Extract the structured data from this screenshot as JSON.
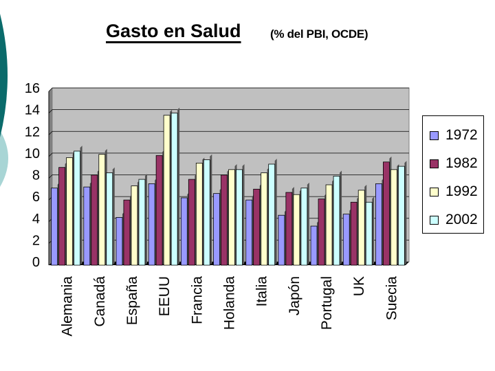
{
  "header": {
    "title": "Gasto en Salud",
    "subtitle": "(% del PBI, OCDE)"
  },
  "colors": {
    "plot_bg": "#c0c0c0",
    "deco_teal": "#0a6b6b",
    "deco_light": "#a8d5d5"
  },
  "chart_data": {
    "type": "bar",
    "title": "Gasto en Salud",
    "subtitle": "(% del PBI, OCDE)",
    "xlabel": "",
    "ylabel": "",
    "ylim": [
      0,
      16
    ],
    "yticks": [
      "0",
      "2",
      "4",
      "6",
      "8",
      "10",
      "12",
      "14",
      "16"
    ],
    "grid": true,
    "legend_position": "right",
    "categories": [
      "Alemania",
      "Canadá",
      "España",
      "EEUU",
      "Francia",
      "Holanda",
      "Italia",
      "Japón",
      "Portugal",
      "UK",
      "Suecia"
    ],
    "series": [
      {
        "name": "1972",
        "color": "#9999ff",
        "values": [
          7.1,
          7.2,
          4.4,
          7.5,
          6.2,
          6.6,
          6.0,
          4.6,
          3.6,
          4.7,
          7.5
        ]
      },
      {
        "name": "1982",
        "color": "#993366",
        "values": [
          9.0,
          8.3,
          6.0,
          10.1,
          7.9,
          8.3,
          7.0,
          6.7,
          6.1,
          5.8,
          9.5
        ]
      },
      {
        "name": "1992",
        "color": "#ffffcc",
        "values": [
          9.9,
          10.2,
          7.3,
          13.8,
          9.4,
          8.8,
          8.5,
          6.5,
          7.4,
          6.9,
          8.8
        ]
      },
      {
        "name": "2002",
        "color": "#ccffff",
        "values": [
          10.5,
          8.5,
          7.9,
          14.0,
          9.7,
          8.8,
          9.3,
          7.1,
          8.2,
          5.8,
          9.1
        ]
      }
    ]
  }
}
